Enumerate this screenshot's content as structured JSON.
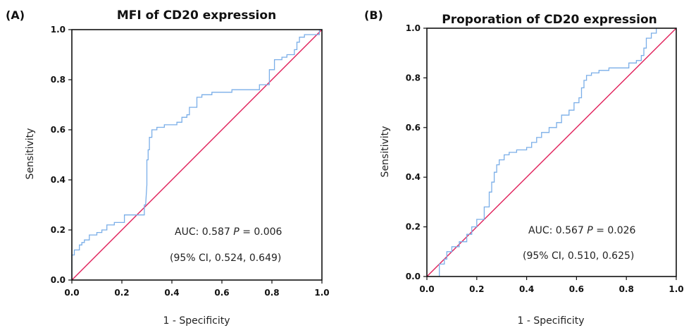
{
  "chart_data": [
    {
      "type": "line",
      "panel_label": "(A)",
      "title": "MFI of CD20 expression",
      "xlabel": "1 - Specificity",
      "ylabel": "Sensitivity",
      "xlim": [
        0,
        1
      ],
      "ylim": [
        0,
        1
      ],
      "xticks": [
        "0.0",
        "0.2",
        "0.4",
        "0.6",
        "0.8",
        "1.0"
      ],
      "yticks": [
        "0.0",
        "0.2",
        "0.4",
        "0.6",
        "0.8",
        "1.0"
      ],
      "annotation_line1_prefix": "AUC: 0.587 ",
      "annotation_line1_p": "P",
      "annotation_line1_suffix": " = 0.006",
      "annotation_line2": "(95% CI, 0.524, 0.649)",
      "colors": {
        "roc": "#7aaee8",
        "reference": "#e0205a"
      },
      "series": [
        {
          "values_x": [
            0,
            0,
            0.01,
            0.01,
            0.03,
            0.03,
            0.04,
            0.04,
            0.05,
            0.05,
            0.07,
            0.07,
            0.1,
            0.1,
            0.12,
            0.12,
            0.14,
            0.14,
            0.17,
            0.17,
            0.21,
            0.21,
            0.29,
            0.29,
            0.295,
            0.3,
            0.3,
            0.305,
            0.305,
            0.31,
            0.31,
            0.32,
            0.32,
            0.34,
            0.34,
            0.37,
            0.37,
            0.42,
            0.42,
            0.44,
            0.44,
            0.46,
            0.46,
            0.47,
            0.47,
            0.5,
            0.5,
            0.52,
            0.52,
            0.56,
            0.56,
            0.64,
            0.64,
            0.75,
            0.75,
            0.79,
            0.79,
            0.81,
            0.81,
            0.84,
            0.84,
            0.86,
            0.86,
            0.89,
            0.89,
            0.9,
            0.9,
            0.91,
            0.91,
            0.93,
            0.93,
            0.99,
            0.99,
            1.0
          ],
          "values_y": [
            0,
            0.1,
            0.1,
            0.12,
            0.12,
            0.14,
            0.14,
            0.15,
            0.15,
            0.16,
            0.16,
            0.18,
            0.18,
            0.19,
            0.19,
            0.2,
            0.2,
            0.22,
            0.22,
            0.23,
            0.23,
            0.26,
            0.26,
            0.3,
            0.3,
            0.38,
            0.48,
            0.48,
            0.52,
            0.52,
            0.57,
            0.57,
            0.6,
            0.6,
            0.61,
            0.61,
            0.62,
            0.62,
            0.63,
            0.63,
            0.65,
            0.65,
            0.66,
            0.66,
            0.69,
            0.69,
            0.73,
            0.73,
            0.74,
            0.74,
            0.75,
            0.75,
            0.76,
            0.76,
            0.78,
            0.78,
            0.84,
            0.84,
            0.88,
            0.88,
            0.89,
            0.89,
            0.9,
            0.9,
            0.92,
            0.92,
            0.95,
            0.95,
            0.97,
            0.97,
            0.98,
            0.98,
            1.0,
            1.0
          ]
        }
      ]
    },
    {
      "type": "line",
      "panel_label": "(B)",
      "title": "Proporation of CD20 expression",
      "xlabel": "1 - Specificity",
      "ylabel": "Sensitivity",
      "xlim": [
        0,
        1
      ],
      "ylim": [
        0,
        1
      ],
      "xticks": [
        "0.0",
        "0.2",
        "0.4",
        "0.6",
        "0.8",
        "1.0"
      ],
      "yticks": [
        "0.0",
        "0.2",
        "0.4",
        "0.6",
        "0.8",
        "1.0"
      ],
      "annotation_line1_prefix": "AUC: 0.567 ",
      "annotation_line1_p": "P",
      "annotation_line1_suffix": " = 0.026",
      "annotation_line2": "(95% CI, 0.510, 0.625)",
      "colors": {
        "roc": "#7aaee8",
        "reference": "#e0205a"
      },
      "series": [
        {
          "values_x": [
            0.05,
            0.05,
            0.07,
            0.07,
            0.08,
            0.08,
            0.1,
            0.1,
            0.13,
            0.13,
            0.16,
            0.16,
            0.18,
            0.18,
            0.2,
            0.2,
            0.23,
            0.23,
            0.25,
            0.25,
            0.26,
            0.26,
            0.27,
            0.27,
            0.28,
            0.28,
            0.29,
            0.29,
            0.31,
            0.31,
            0.33,
            0.33,
            0.36,
            0.36,
            0.4,
            0.4,
            0.42,
            0.42,
            0.44,
            0.44,
            0.46,
            0.46,
            0.49,
            0.49,
            0.52,
            0.52,
            0.54,
            0.54,
            0.57,
            0.57,
            0.59,
            0.59,
            0.61,
            0.61,
            0.62,
            0.62,
            0.63,
            0.63,
            0.64,
            0.64,
            0.66,
            0.66,
            0.69,
            0.69,
            0.73,
            0.73,
            0.81,
            0.81,
            0.84,
            0.84,
            0.86,
            0.86,
            0.87,
            0.87,
            0.88,
            0.88,
            0.9,
            0.9,
            0.92,
            0.92
          ],
          "values_y": [
            0,
            0.05,
            0.05,
            0.07,
            0.07,
            0.1,
            0.1,
            0.12,
            0.12,
            0.14,
            0.14,
            0.17,
            0.17,
            0.2,
            0.2,
            0.23,
            0.23,
            0.28,
            0.28,
            0.34,
            0.34,
            0.38,
            0.38,
            0.42,
            0.42,
            0.45,
            0.45,
            0.47,
            0.47,
            0.49,
            0.49,
            0.5,
            0.5,
            0.51,
            0.51,
            0.52,
            0.52,
            0.54,
            0.54,
            0.56,
            0.56,
            0.58,
            0.58,
            0.6,
            0.6,
            0.62,
            0.62,
            0.65,
            0.65,
            0.67,
            0.67,
            0.7,
            0.7,
            0.72,
            0.72,
            0.76,
            0.76,
            0.79,
            0.79,
            0.81,
            0.81,
            0.82,
            0.82,
            0.83,
            0.83,
            0.84,
            0.84,
            0.86,
            0.86,
            0.87,
            0.87,
            0.89,
            0.89,
            0.92,
            0.92,
            0.96,
            0.96,
            0.98,
            0.98,
            1.0
          ]
        }
      ]
    }
  ]
}
